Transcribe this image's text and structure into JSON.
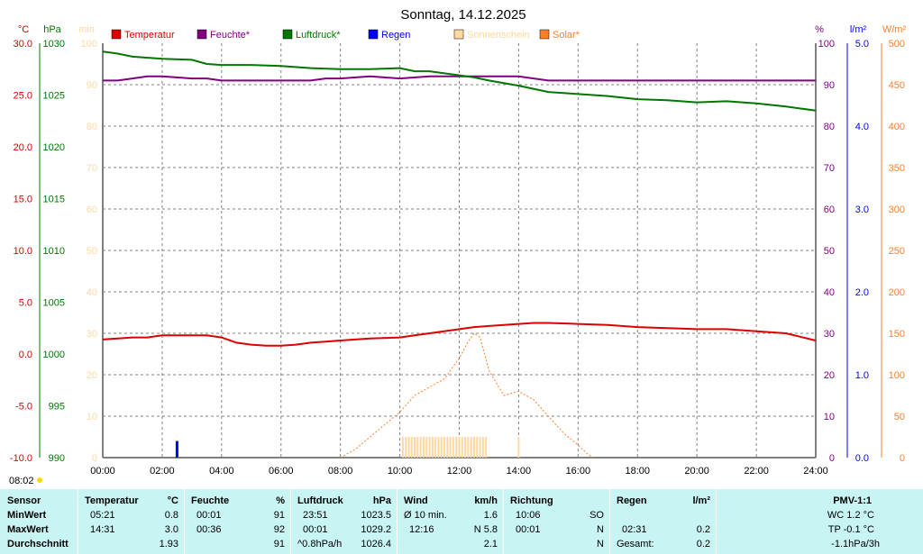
{
  "title": "Sonntag, 14.12.2025",
  "axes": {
    "temp_unit": "°C",
    "pressure_unit": "hPa",
    "min_unit": "min",
    "percent_unit": "%",
    "rain_unit": "l/m²",
    "solar_unit": "W/m²",
    "temp_ticks": [
      "30.0",
      "25.0",
      "20.0",
      "15.0",
      "10.0",
      "5.0",
      "0.0",
      "-5.0",
      "-10.0"
    ],
    "pressure_ticks": [
      "1030",
      "1025",
      "1020",
      "1015",
      "1010",
      "1005",
      "1000",
      "995",
      "990"
    ],
    "minutes_ticks": [
      "100",
      "90",
      "80",
      "70",
      "60",
      "50",
      "40",
      "30",
      "20",
      "10",
      "0"
    ],
    "percent_ticks": [
      "100",
      "90",
      "80",
      "70",
      "60",
      "50",
      "40",
      "30",
      "20",
      "10",
      "0"
    ],
    "rain_ticks": [
      "5.0",
      "4.0",
      "3.0",
      "2.0",
      "1.0",
      "0.0"
    ],
    "solar_ticks": [
      "500",
      "450",
      "400",
      "350",
      "300",
      "250",
      "200",
      "150",
      "100",
      "50",
      "0"
    ],
    "time_ticks": [
      "00:00",
      "02:00",
      "04:00",
      "06:00",
      "08:00",
      "10:00",
      "12:00",
      "14:00",
      "16:00",
      "18:00",
      "20:00",
      "22:00",
      "24:00"
    ]
  },
  "sunrise_label": "08:02",
  "colors": {
    "temperature": "#dd0000",
    "humidity": "#800080",
    "pressure": "#007700",
    "rain": "#0000ff",
    "sunshine": "#ffd8a0",
    "solar": "#ff7f27",
    "panel": "#c8f4f4",
    "grid": "#808080"
  },
  "legend": [
    {
      "label": "Temperatur",
      "color": "#dd0000"
    },
    {
      "label": "Feuchte*",
      "color": "#800080"
    },
    {
      "label": "Luftdruck*",
      "color": "#007700"
    },
    {
      "label": "Regen",
      "color": "#0000ff"
    },
    {
      "label": "Sonnenschein",
      "color": "#ffd8a0"
    },
    {
      "label": "Solar*",
      "color": "#ff7f27"
    }
  ],
  "chart_data": {
    "type": "line",
    "title": "Sonntag, 14.12.2025",
    "x_unit": "time (hours)",
    "xlim": [
      0,
      24
    ],
    "series": [
      {
        "name": "Temperatur",
        "unit": "°C",
        "axis": "temp",
        "ylim": [
          -10,
          30
        ],
        "x": [
          0,
          1,
          1.5,
          2,
          3,
          3.5,
          4,
          4.5,
          5,
          5.5,
          6,
          6.5,
          7,
          7.5,
          8,
          9,
          10,
          10.5,
          11,
          12,
          12.5,
          13,
          14,
          14.5,
          15,
          16,
          17,
          18,
          19,
          20,
          21,
          22,
          23,
          24
        ],
        "y": [
          1.4,
          1.6,
          1.6,
          1.8,
          1.8,
          1.8,
          1.6,
          1.1,
          0.9,
          0.8,
          0.8,
          0.9,
          1.1,
          1.2,
          1.3,
          1.5,
          1.6,
          1.8,
          2.0,
          2.4,
          2.6,
          2.7,
          2.9,
          3.0,
          3.0,
          2.9,
          2.8,
          2.6,
          2.5,
          2.4,
          2.4,
          2.2,
          2.0,
          1.3
        ]
      },
      {
        "name": "Feuchte*",
        "unit": "%",
        "axis": "percent",
        "ylim": [
          0,
          100
        ],
        "x": [
          0,
          0.5,
          1,
          1.5,
          2,
          3,
          3.5,
          4,
          5,
          6,
          7,
          7.5,
          8,
          9,
          10,
          11,
          12,
          13,
          14,
          14.5,
          15,
          16,
          18,
          20,
          22,
          24
        ],
        "y": [
          91,
          91,
          91.5,
          92,
          92,
          91.5,
          91.5,
          91,
          91,
          91,
          91,
          91.5,
          91.5,
          92,
          91.5,
          92,
          92,
          92,
          92,
          91.5,
          91,
          91,
          91,
          91,
          91,
          91
        ]
      },
      {
        "name": "Luftdruck*",
        "unit": "hPa",
        "axis": "pressure",
        "ylim": [
          990,
          1030
        ],
        "x": [
          0,
          0.5,
          1,
          2,
          3,
          3.5,
          4,
          5,
          6,
          7,
          8,
          9,
          10,
          10.5,
          11,
          12,
          12.5,
          13,
          14,
          15,
          16,
          17,
          18,
          19,
          20,
          21,
          22,
          23,
          24
        ],
        "y": [
          1029.2,
          1029.0,
          1028.7,
          1028.5,
          1028.4,
          1028.0,
          1027.9,
          1027.9,
          1027.8,
          1027.6,
          1027.5,
          1027.5,
          1027.6,
          1027.3,
          1027.3,
          1026.9,
          1026.7,
          1026.4,
          1025.9,
          1025.3,
          1025.1,
          1024.9,
          1024.6,
          1024.5,
          1024.3,
          1024.4,
          1024.2,
          1023.9,
          1023.5
        ]
      },
      {
        "name": "Regen",
        "unit": "l/m²",
        "axis": "rain",
        "ylim": [
          0,
          5
        ],
        "type": "bar",
        "x": [
          2.5
        ],
        "y": [
          0.2
        ]
      },
      {
        "name": "Solar*",
        "unit": "W/m²",
        "axis": "solar",
        "ylim": [
          0,
          500
        ],
        "style": "dotted",
        "x": [
          8.0,
          8.5,
          9.0,
          9.5,
          10.0,
          10.5,
          11.0,
          11.5,
          12.0,
          12.3,
          12.5,
          12.7,
          13.0,
          13.5,
          14.0,
          14.5,
          15.0,
          15.5,
          16.0,
          16.3,
          16.5
        ],
        "y": [
          0,
          10,
          25,
          40,
          55,
          75,
          85,
          95,
          120,
          140,
          150,
          145,
          105,
          75,
          80,
          70,
          50,
          30,
          15,
          5,
          0
        ]
      },
      {
        "name": "Sonnenschein",
        "unit": "min",
        "axis": "minutes",
        "ylim": [
          0,
          100
        ],
        "type": "bar",
        "x": [
          10.1,
          10.2,
          10.3,
          10.4,
          10.5,
          10.6,
          10.7,
          10.8,
          10.9,
          11.0,
          11.1,
          11.2,
          11.3,
          11.4,
          11.5,
          11.6,
          11.7,
          11.8,
          11.9,
          12.0,
          12.1,
          12.2,
          12.3,
          12.4,
          12.5,
          12.6,
          12.7,
          12.8,
          12.9,
          14.0
        ],
        "y": [
          5,
          5,
          5,
          5,
          5,
          5,
          5,
          5,
          5,
          5,
          5,
          5,
          5,
          5,
          5,
          5,
          5,
          5,
          5,
          5,
          5,
          5,
          5,
          5,
          5,
          5,
          5,
          5,
          5,
          5
        ]
      }
    ]
  },
  "stats": {
    "row_labels": [
      "Sensor",
      "MinWert",
      "MaxWert",
      "Durchschnitt"
    ],
    "temperature": {
      "header": "Temperatur",
      "unit": "°C",
      "min_time": "05:21",
      "min": "0.8",
      "max_time": "14:31",
      "max": "3.0",
      "avg": "1.93"
    },
    "humidity": {
      "header": "Feuchte",
      "unit": "%",
      "min_time": "00:01",
      "min": "91",
      "max_time": "00:36",
      "max": "92",
      "avg": "91"
    },
    "pressure": {
      "header": "Luftdruck",
      "unit": "hPa",
      "min_time": "23:51",
      "min": "1023.5",
      "max_time": "00:01",
      "max": "1029.2",
      "trend": "^0.8hPa/h",
      "avg": "1026.4"
    },
    "wind": {
      "header": "Wind",
      "unit": "km/h",
      "row1_label": "Ø 10 min.",
      "row1_val": "1.6",
      "row2_time": "12:16",
      "row2_val": "N 5.8",
      "avg": "2.1"
    },
    "direction": {
      "header": "Richtung",
      "row1_time": "10:06",
      "row1_val": "SO",
      "row2_time": "00:01",
      "row2_val": "N",
      "avg": "N"
    },
    "rain": {
      "header": "Regen",
      "unit": "l/m²",
      "row2_time": "02:31",
      "row2_val": "0.2",
      "total_label": "Gesamt:",
      "total_val": "0.2"
    },
    "pmv": {
      "header": "PMV-1:1",
      "wc": "WC 1.2 °C",
      "tp": "TP -0.1 °C",
      "trend": "-1.1hPa/3h"
    }
  }
}
